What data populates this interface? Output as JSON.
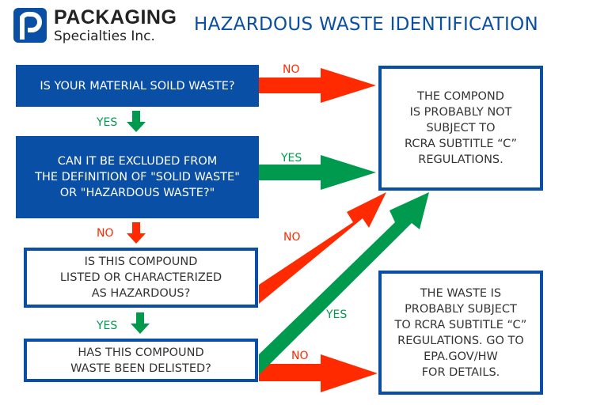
{
  "header": {
    "brand_line1": "PACKAGING",
    "brand_line2": "Specialties Inc.",
    "title": "HAZARDOUS WASTE IDENTIFICATION"
  },
  "colors": {
    "blue": "#0a4fa6",
    "no_arrow": "#ff2a00",
    "yes_arrow": "#009a4e"
  },
  "questions": [
    "IS YOUR MATERIAL SOILD WASTE?",
    "CAN IT BE EXCLUDED FROM\nTHE DEFINITION OF \"SOLID WASTE\"\nOR \"HAZARDOUS WASTE?\"",
    "IS THIS COMPOUND\nLISTED OR CHARACTERIZED\nAS HAZARDOUS?",
    "HAS THIS COMPOUND\nWASTE BEEN DELISTED?"
  ],
  "outcomes": [
    "THE COMPOND\nIS PROBABLY NOT\nSUBJECT TO\nRCRA SUBTITLE “C”\nREGULATIONS.",
    "THE WASTE IS\nPROBABLY SUBJECT\nTO RCRA SUBTITLE “C”\nREGULATIONS. GO TO\nEPA.GOV/HW\nFOR DETAILS."
  ],
  "labels": {
    "no": "NO",
    "yes": "YES"
  }
}
